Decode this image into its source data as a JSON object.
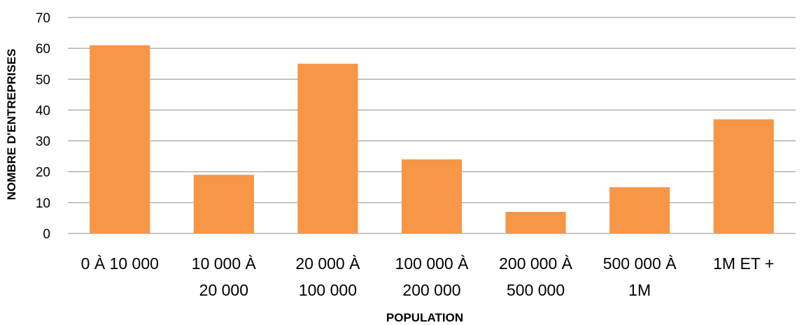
{
  "chart_data": {
    "type": "bar",
    "categories": [
      [
        "0 À 10 000"
      ],
      [
        "10 000 À",
        "20 000"
      ],
      [
        "20 000 À",
        "100 000"
      ],
      [
        "100 000 À",
        "200 000"
      ],
      [
        "200 000 À",
        "500 000"
      ],
      [
        "500 000 À",
        "1M"
      ],
      [
        "1M ET +"
      ]
    ],
    "values": [
      61,
      19,
      55,
      24,
      7,
      15,
      37
    ],
    "xlabel": "POPULATION",
    "ylabel": "NOMBRE D'ENTREPRISES",
    "ylim": [
      0,
      70
    ],
    "yticks": [
      0,
      10,
      20,
      30,
      40,
      50,
      60,
      70
    ],
    "bar_color": "#F79646",
    "grid": true
  }
}
